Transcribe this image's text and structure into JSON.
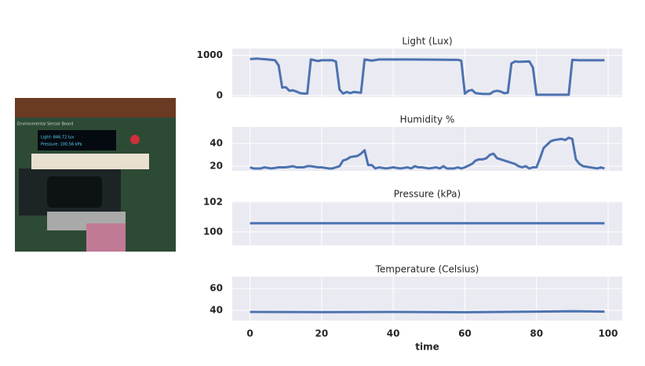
{
  "photo": {
    "board_label": "Environmental Sensor Board",
    "screen_lines": [
      "Light: 846.72 lux",
      "Pressure: 100.56 kPa"
    ]
  },
  "chart_data": [
    {
      "type": "line",
      "title": "Light (Lux)",
      "color": "#4c72b0",
      "grid": true,
      "x": [
        0,
        2,
        5,
        7,
        8,
        9,
        10,
        11,
        12,
        13,
        14,
        15,
        16,
        17,
        19,
        20,
        23,
        24,
        25,
        26,
        27,
        28,
        29,
        30,
        31,
        32,
        34,
        36,
        45,
        58,
        59,
        60,
        61,
        62,
        63,
        65,
        67,
        68,
        69,
        70,
        71,
        72,
        73,
        74,
        75,
        78,
        79,
        80,
        88,
        89,
        90,
        92,
        99
      ],
      "values": [
        910,
        920,
        900,
        880,
        750,
        200,
        210,
        120,
        130,
        100,
        60,
        50,
        50,
        900,
        860,
        880,
        880,
        850,
        150,
        50,
        90,
        60,
        90,
        80,
        70,
        900,
        870,
        900,
        900,
        890,
        870,
        50,
        120,
        140,
        60,
        40,
        40,
        100,
        120,
        100,
        60,
        70,
        800,
        850,
        840,
        850,
        700,
        20,
        20,
        20,
        890,
        880,
        880
      ],
      "xlim": [
        -4.95,
        103.95
      ],
      "xticks": [
        0,
        20,
        40,
        60,
        80,
        100
      ],
      "ylim": [
        -40,
        1170
      ],
      "yticks": [
        0,
        1000
      ]
    },
    {
      "type": "line",
      "title": "Humidity %",
      "color": "#4c72b0",
      "grid": true,
      "x": [
        0,
        1,
        3,
        4,
        6,
        8,
        10,
        12,
        13,
        15,
        16,
        17,
        19,
        20,
        22,
        23,
        24,
        25,
        26,
        27,
        28,
        30,
        31,
        32,
        33,
        34,
        35,
        36,
        38,
        40,
        42,
        44,
        45,
        46,
        47,
        48,
        50,
        52,
        53,
        54,
        55,
        57,
        58,
        59,
        60,
        62,
        63,
        64,
        65,
        66,
        67,
        68,
        69,
        70,
        72,
        74,
        75,
        76,
        77,
        78,
        79,
        80,
        81,
        82,
        83,
        84,
        85,
        87,
        88,
        89,
        90,
        91,
        92,
        93,
        95,
        97,
        98,
        99
      ],
      "values": [
        19,
        18,
        18,
        19,
        18,
        19,
        19,
        20,
        19,
        19,
        20,
        20,
        19,
        19,
        18,
        18,
        19,
        20,
        25,
        26,
        28,
        29,
        31,
        34,
        21,
        21,
        18,
        19,
        18,
        19,
        18,
        19,
        18,
        20,
        19,
        19,
        18,
        19,
        18,
        20,
        18,
        18,
        19,
        18,
        19,
        22,
        25,
        26,
        26,
        27,
        30,
        31,
        27,
        26,
        24,
        22,
        20,
        19,
        20,
        18,
        19,
        19,
        27,
        36,
        39,
        42,
        43,
        44,
        43,
        45,
        44,
        26,
        22,
        20,
        19,
        18,
        19,
        18
      ],
      "xlim": [
        -4.95,
        103.95
      ],
      "xticks": [
        0,
        20,
        40,
        60,
        80,
        100
      ],
      "ylim": [
        15.9,
        54.5
      ],
      "yticks": [
        20,
        40
      ]
    },
    {
      "type": "line",
      "title": "Pressure (kPa)",
      "color": "#4c72b0",
      "grid": true,
      "x": [
        0,
        30,
        60,
        99
      ],
      "values": [
        100.58,
        100.58,
        100.58,
        100.58
      ],
      "xlim": [
        -4.95,
        103.95
      ],
      "xticks": [
        0,
        20,
        40,
        60,
        80,
        100
      ],
      "ylim": [
        99.1,
        102.05
      ],
      "yticks": [
        100,
        102
      ]
    },
    {
      "type": "line",
      "title": "Temperature (Celsius)",
      "xlabel": "time",
      "color": "#4c72b0",
      "grid": true,
      "x": [
        0,
        20,
        40,
        60,
        80,
        90,
        99
      ],
      "values": [
        38.6,
        38.4,
        38.6,
        38.3,
        38.8,
        39.2,
        38.8
      ],
      "xlim": [
        -4.95,
        103.95
      ],
      "xticks": [
        0,
        20,
        40,
        60,
        80,
        100
      ],
      "ylim": [
        30.7,
        70.7
      ],
      "yticks": [
        40,
        60
      ]
    }
  ]
}
